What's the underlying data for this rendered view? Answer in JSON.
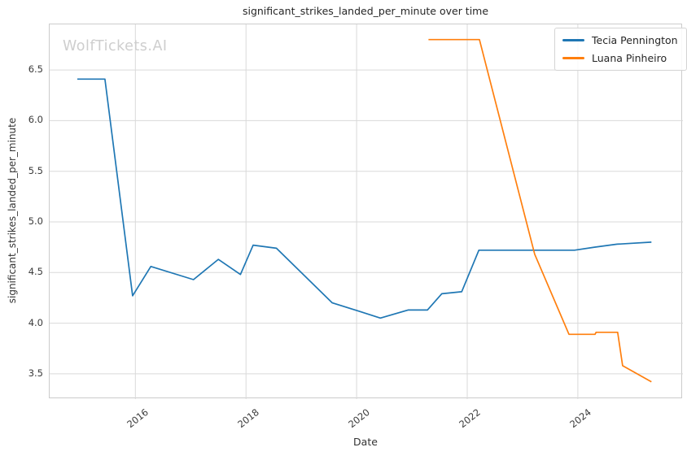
{
  "watermark": "WolfTickets.AI",
  "chart_data": {
    "type": "line",
    "title": "significant_strikes_landed_per_minute over time",
    "xlabel": "Date",
    "ylabel": "significant_strikes_landed_per_minute",
    "xlim": [
      2014.45,
      2025.9
    ],
    "ylim": [
      3.25,
      6.95
    ],
    "x_ticks": [
      2016,
      2018,
      2020,
      2022,
      2024
    ],
    "x_tick_labels": [
      "2016",
      "2018",
      "2020",
      "2022",
      "2024"
    ],
    "y_ticks": [
      3.5,
      4.0,
      4.5,
      5.0,
      5.5,
      6.0,
      6.5
    ],
    "y_tick_labels": [
      "3.5",
      "4.0",
      "4.5",
      "5.0",
      "5.5",
      "6.0",
      "6.5"
    ],
    "grid": true,
    "grid_color": "#d9d9d9",
    "legend_position": "upper right",
    "series": [
      {
        "name": "Tecia Pennington",
        "color": "#1f77b4",
        "x": [
          2014.95,
          2015.45,
          2015.95,
          2016.28,
          2017.05,
          2017.5,
          2017.9,
          2018.13,
          2018.55,
          2019.56,
          2020.03,
          2020.43,
          2020.93,
          2021.28,
          2021.54,
          2021.9,
          2022.21,
          2023.94,
          2024.3,
          2024.71,
          2025.33
        ],
        "y": [
          6.41,
          6.41,
          4.27,
          4.56,
          4.43,
          4.63,
          4.48,
          4.77,
          4.74,
          4.2,
          4.12,
          4.05,
          4.13,
          4.13,
          4.29,
          4.31,
          4.72,
          4.72,
          4.75,
          4.78,
          4.8
        ]
      },
      {
        "name": "Luana Pinheiro",
        "color": "#ff7f0e",
        "x": [
          2021.3,
          2022.22,
          2023.22,
          2023.84,
          2024.31,
          2024.33,
          2024.72,
          2024.81,
          2025.33
        ],
        "y": [
          6.8,
          6.8,
          4.68,
          3.89,
          3.89,
          3.91,
          3.91,
          3.58,
          3.42
        ]
      }
    ]
  }
}
